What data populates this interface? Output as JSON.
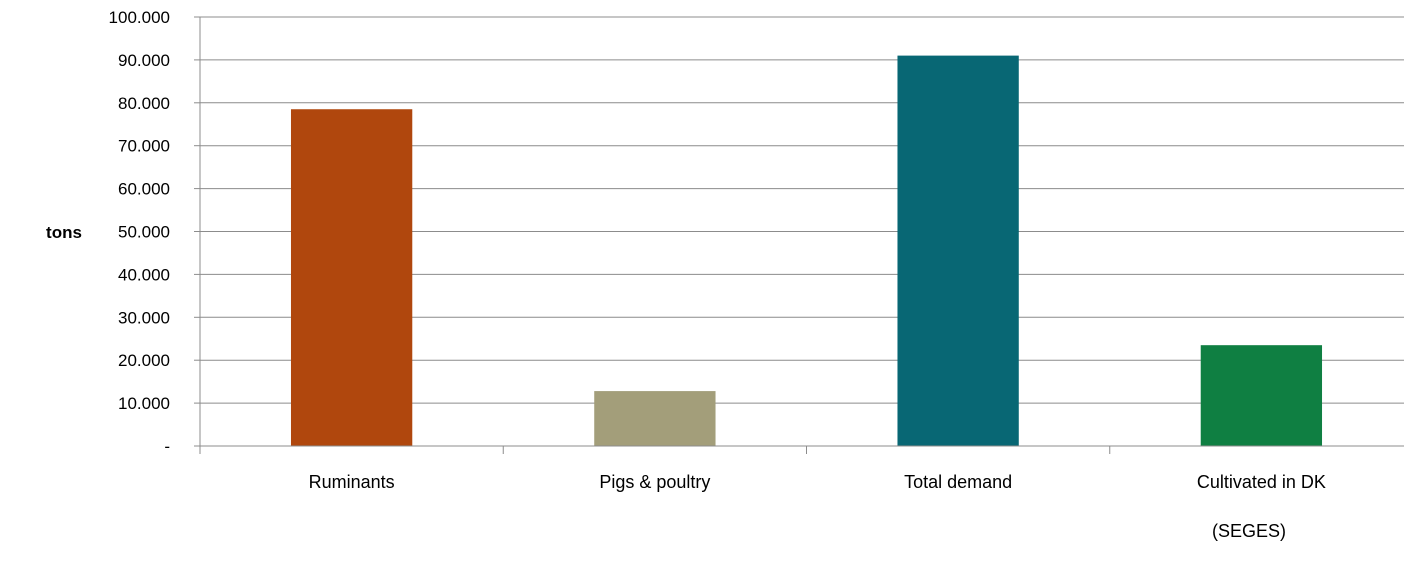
{
  "chart_data": {
    "type": "bar",
    "categories": [
      "Ruminants",
      "Pigs & poultry",
      "Total demand",
      "Cultivated in DK"
    ],
    "values": [
      78500,
      12800,
      91000,
      23500
    ],
    "colors": [
      "#B0470D",
      "#A39E7A",
      "#086774",
      "#0F7F42"
    ],
    "ylabel": "tons",
    "xlabel": "",
    "ylim": [
      0,
      100000
    ],
    "yticks": [
      0,
      10000,
      20000,
      30000,
      40000,
      50000,
      60000,
      70000,
      80000,
      90000,
      100000
    ],
    "ytick_labels": [
      "-",
      "10.000",
      "20.000",
      "30.000",
      "40.000",
      "50.000",
      "60.000",
      "70.000",
      "80.000",
      "90.000",
      "100.000"
    ],
    "grid": true,
    "legend": "none",
    "source_note": "(SEGES)"
  }
}
